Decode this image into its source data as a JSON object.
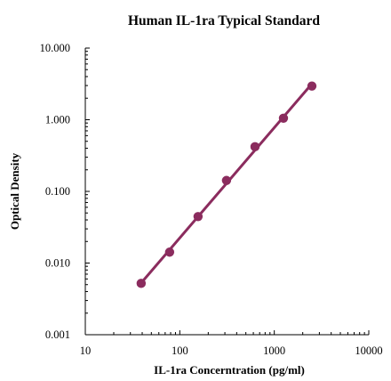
{
  "chart_data": {
    "type": "scatter",
    "title": "Human IL-1ra Typical Standard",
    "xlabel": "IL-1ra Concerntration (pg/ml)",
    "ylabel": "Optical Density",
    "xscale": "log",
    "yscale": "log",
    "xlim": [
      10,
      10000
    ],
    "ylim": [
      0.001,
      10
    ],
    "x_ticks": [
      10,
      100,
      1000,
      10000
    ],
    "x_tick_labels": [
      "10",
      "100",
      "1000",
      "10000"
    ],
    "y_ticks": [
      0.001,
      0.01,
      0.1,
      1,
      10
    ],
    "y_tick_labels": [
      "0.001",
      "0.010",
      "0.100",
      "1.000",
      "10.000"
    ],
    "grid": false,
    "legend": "none",
    "series": [
      {
        "x": [
          39,
          78,
          156,
          312,
          625,
          1250,
          2500
        ],
        "y": [
          0.0052,
          0.0142,
          0.0445,
          0.142,
          0.42,
          1.05,
          2.95
        ],
        "marker": "circle",
        "line": "fitted",
        "color": "#8b2c5e"
      }
    ]
  }
}
